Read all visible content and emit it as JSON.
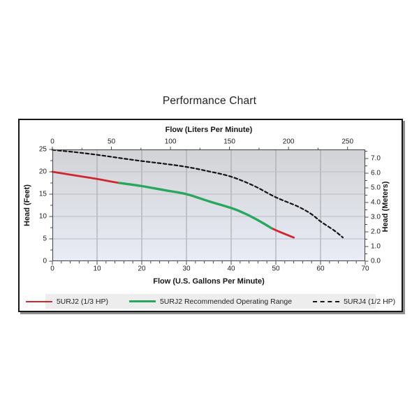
{
  "page": {
    "title": "Performance Chart"
  },
  "chart": {
    "top_axis": {
      "label": "Flow (Liters Per Minute)",
      "ticks": [
        0,
        50,
        100,
        150,
        200,
        250
      ]
    },
    "bottom_axis": {
      "label": "Flow (U.S. Gallons Per Minute)",
      "ticks": [
        0,
        10,
        20,
        30,
        40,
        50,
        60,
        70
      ]
    },
    "left_axis": {
      "label": "Head (Feet)",
      "ticks": [
        25,
        20,
        15,
        10,
        5,
        0
      ]
    },
    "right_axis": {
      "label": "Head (Meters)",
      "ticks": [
        "7.0",
        "6.0",
        "5.0",
        "4.0",
        "3.0",
        "2.0",
        "1.0",
        "0.0"
      ]
    },
    "colors": {
      "red": "#d0262e",
      "green": "#2aa75f",
      "dashed_black": "#141414",
      "plot_bg_top": "#d2d3d6",
      "plot_bg_bottom": "#e9ecf6"
    }
  },
  "chart_data": {
    "type": "line",
    "title": "Performance Chart",
    "xlabel_bottom": "Flow (U.S. Gallons Per Minute)",
    "xlabel_top": "Flow (Liters Per Minute)",
    "ylabel_left": "Head (Feet)",
    "ylabel_right": "Head (Meters)",
    "xlim_gpm": [
      0,
      70
    ],
    "ylim_feet": [
      0,
      25
    ],
    "top_axis_lpm_ticks": [
      0,
      50,
      100,
      150,
      200,
      250
    ],
    "right_axis_meter_ticks": [
      7.0,
      6.0,
      5.0,
      4.0,
      3.0,
      2.0,
      1.0,
      0.0
    ],
    "liters_per_gallon": 3.78541,
    "feet_per_meter": 3.28084,
    "grid": true,
    "legend_position": "bottom",
    "series": [
      {
        "name": "5URJ2 (1/3 HP)",
        "color": "#d0262e",
        "style": "solid",
        "width": 2.8,
        "points_gpm_feet": [
          [
            0,
            20.0
          ],
          [
            5,
            19.2
          ],
          [
            10,
            18.4
          ],
          [
            15,
            17.5
          ],
          [
            20,
            16.8
          ],
          [
            25,
            15.9
          ],
          [
            30,
            15.0
          ],
          [
            35,
            13.4
          ],
          [
            40,
            11.9
          ],
          [
            43,
            10.7
          ],
          [
            45,
            9.7
          ],
          [
            47,
            8.6
          ],
          [
            49,
            7.4
          ],
          [
            51.5,
            6.3
          ],
          [
            54,
            5.3
          ]
        ]
      },
      {
        "name": "5URJ2 Recommended Operating Range",
        "color": "#2aa75f",
        "style": "solid",
        "width": 3.4,
        "points_gpm_feet": [
          [
            15,
            17.5
          ],
          [
            20,
            16.8
          ],
          [
            25,
            15.9
          ],
          [
            30,
            15.0
          ],
          [
            35,
            13.4
          ],
          [
            40,
            11.9
          ],
          [
            43,
            10.7
          ],
          [
            45,
            9.7
          ],
          [
            47,
            8.6
          ],
          [
            49,
            7.4
          ]
        ]
      },
      {
        "name": "5URJ4 (1/2 HP)",
        "color": "#141414",
        "style": "dashed",
        "width": 2.2,
        "points_gpm_feet": [
          [
            0,
            24.9
          ],
          [
            5,
            24.4
          ],
          [
            10,
            23.8
          ],
          [
            15,
            23.1
          ],
          [
            20,
            22.4
          ],
          [
            25,
            21.8
          ],
          [
            30,
            21.1
          ],
          [
            35,
            20.1
          ],
          [
            40,
            18.9
          ],
          [
            45,
            16.9
          ],
          [
            50,
            14.3
          ],
          [
            55,
            12.2
          ],
          [
            58,
            10.5
          ],
          [
            60,
            8.9
          ],
          [
            63,
            6.9
          ],
          [
            65,
            5.3
          ]
        ]
      }
    ]
  }
}
